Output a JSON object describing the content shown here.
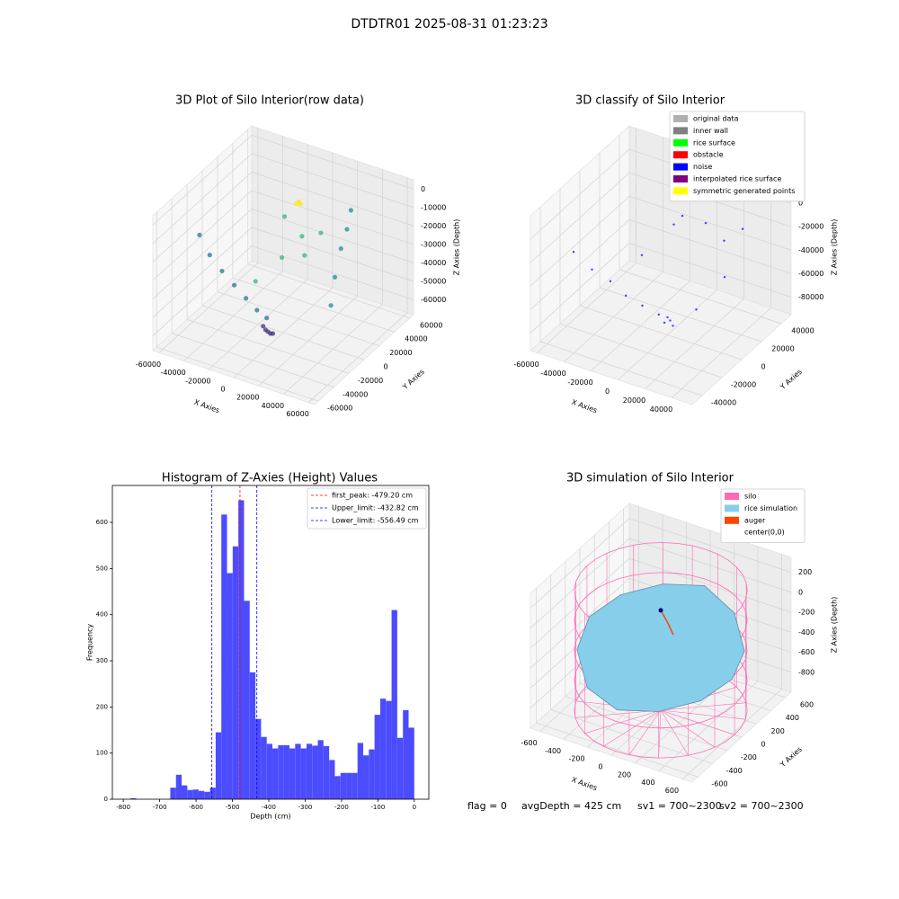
{
  "title": "DTDTR01 2025-08-31 01:23:23",
  "footer": [
    "flag = 0",
    "avgDepth = 425 cm",
    "sv1 = 700~2300",
    "sv2 = 700~2300"
  ],
  "chart_data": [
    {
      "type": "scatter3d",
      "title": "3D Plot of Silo Interior(row data)",
      "xlabel": "X Axies",
      "ylabel": "Y Axies",
      "zlabel": "Z Axies (Depth)",
      "xlim": [
        -65000,
        65000
      ],
      "ylim": [
        -65000,
        65000
      ],
      "zlim": [
        -68000,
        5000
      ],
      "xticks": [
        -60000,
        -40000,
        -20000,
        0,
        20000,
        40000,
        60000
      ],
      "yticks": [
        -60000,
        -40000,
        -20000,
        0,
        20000,
        40000,
        60000
      ],
      "zticks": [
        0,
        -10000,
        -20000,
        -30000,
        -40000,
        -50000,
        -60000
      ],
      "series": [
        {
          "color": "#2a788e",
          "x": [
            -55000,
            -48000,
            -40000,
            -32000,
            -25000,
            -18000,
            -12000
          ],
          "y": [
            -20000,
            -18000,
            -15000,
            -12000,
            -8000,
            -5000,
            -2000
          ],
          "z": [
            -20000,
            -30000,
            -38000,
            -45000,
            -52000,
            -58000,
            -62000
          ]
        },
        {
          "color": "#46327e",
          "x": [
            10000,
            5000,
            0,
            -5000,
            -10000
          ],
          "y": [
            -30000,
            -25000,
            -20000,
            -15000,
            -10000
          ],
          "z": [
            -55000,
            -58000,
            -60000,
            -62000,
            -63000
          ]
        },
        {
          "color": "#fde725",
          "x": [
            0,
            1000,
            -1000,
            500
          ],
          "y": [
            20000,
            21000,
            19000,
            20000
          ],
          "z": [
            -5000,
            -6000,
            -5500,
            -4500
          ]
        },
        {
          "color": "#35b779",
          "x": [
            -5000,
            2000,
            8000,
            12000,
            -10000,
            15000
          ],
          "y": [
            10000,
            -5000,
            15000,
            5000,
            -20000,
            25000
          ],
          "z": [
            -10000,
            -25000,
            -30000,
            -15000,
            -35000,
            -20000
          ]
        },
        {
          "color": "#21908d",
          "x": [
            20000,
            22000,
            25000,
            28000,
            30000
          ],
          "y": [
            30000,
            32000,
            35000,
            38000,
            40000
          ],
          "z": [
            -60000,
            -45000,
            -30000,
            -20000,
            -10000
          ]
        }
      ]
    },
    {
      "type": "scatter3d",
      "title": "3D classify of Silo Interior",
      "xlabel": "X Axies",
      "ylabel": "Y Axies",
      "zlabel": "Z Axies (Depth)",
      "xlim": [
        -65000,
        55000
      ],
      "ylim": [
        -50000,
        50000
      ],
      "zlim": [
        -95000,
        20000
      ],
      "xticks": [
        -60000,
        -40000,
        -20000,
        0,
        20000,
        40000
      ],
      "yticks": [
        -40000,
        -20000,
        0,
        20000,
        40000
      ],
      "zticks": [
        0,
        -20000,
        -40000,
        -60000,
        -80000
      ],
      "legend": "upper right",
      "series": [
        {
          "name": "original data",
          "color": "#b0b0b0",
          "x": [],
          "y": [],
          "z": []
        },
        {
          "name": "inner wall",
          "color": "#808080",
          "x": [],
          "y": [],
          "z": []
        },
        {
          "name": "rice surface",
          "color": "#00ff00",
          "x": [],
          "y": [],
          "z": []
        },
        {
          "name": "obstacle",
          "color": "#ff0000",
          "x": [],
          "y": [],
          "z": []
        },
        {
          "name": "noise",
          "color": "#0000ff",
          "x": [
            -55000,
            -45000,
            -35000,
            -25000,
            -15000,
            -5000,
            0,
            5000,
            15000,
            25000,
            35000,
            -10000,
            10000,
            20000,
            -30000,
            30000,
            0,
            2000
          ],
          "y": [
            -20000,
            -15000,
            -10000,
            -8000,
            -5000,
            -2000,
            0,
            -10000,
            -15000,
            -5000,
            10000,
            20000,
            25000,
            30000,
            15000,
            35000,
            15000,
            0
          ],
          "z": [
            -30000,
            -45000,
            -55000,
            -65000,
            -72000,
            -78000,
            -80000,
            -75000,
            -70000,
            -60000,
            -40000,
            -20000,
            -15000,
            -30000,
            -50000,
            -20000,
            -5000,
            -82000
          ]
        },
        {
          "name": "interpolated rice surface",
          "color": "#800080",
          "x": [],
          "y": [],
          "z": []
        },
        {
          "name": "symmetric generated points",
          "color": "#ffff00",
          "x": [],
          "y": [],
          "z": []
        }
      ]
    },
    {
      "type": "histogram",
      "title": "Histogram of Z-Axies (Height) Values",
      "xlabel": "Depth (cm)",
      "ylabel": "Frequency",
      "color": "#4c4cff",
      "xlim": [
        -830,
        40
      ],
      "ylim": [
        0,
        680
      ],
      "xticks": [
        -800,
        -700,
        -600,
        -500,
        -400,
        -300,
        -200,
        -100,
        0
      ],
      "yticks": [
        0,
        100,
        200,
        300,
        400,
        500,
        600
      ],
      "bins": [
        -780,
        -764.4,
        -748.8,
        -733.2,
        -717.6,
        -702,
        -686.4,
        -670.8,
        -655.2,
        -639.6,
        -624,
        -608.4,
        -592.8,
        -577.2,
        -561.6,
        -546,
        -530.4,
        -514.8,
        -499.2,
        -483.6,
        -468,
        -452.4,
        -436.8,
        -421.2,
        -405.6,
        -390,
        -374.4,
        -358.8,
        -343.2,
        -327.6,
        -312,
        -296.4,
        -280.8,
        -265.2,
        -249.6,
        -234,
        -218.4,
        -202.8,
        -187.2,
        -171.6,
        -156,
        -140.4,
        -124.8,
        -109.2,
        -93.6,
        -78,
        -62.4,
        -46.8,
        -31.2,
        -15.6,
        0
      ],
      "counts": [
        2,
        0,
        0,
        0,
        0,
        0,
        0,
        25,
        53,
        30,
        20,
        21,
        18,
        16,
        25,
        145,
        617,
        490,
        548,
        648,
        430,
        275,
        174,
        135,
        120,
        110,
        117,
        117,
        110,
        120,
        110,
        120,
        116,
        128,
        115,
        85,
        50,
        57,
        57,
        57,
        122,
        95,
        108,
        183,
        218,
        213,
        410,
        133,
        193,
        155
      ],
      "legend": "upper right",
      "lines": [
        {
          "label": "first_peak: -479.20 cm",
          "value": -479.2,
          "color": "#ff0000"
        },
        {
          "label": "Upper_limit: -432.82 cm",
          "value": -432.82,
          "color": "#0000ff"
        },
        {
          "label": "Lower_limit: -556.49 cm",
          "value": -556.49,
          "color": "#0000ff"
        }
      ]
    },
    {
      "type": "surface3d",
      "title": "3D simulation of Silo Interior",
      "xlabel": "X Axies",
      "ylabel": "Y Axies",
      "zlabel": "Z Axies (Depth)",
      "xlim": [
        -680,
        680
      ],
      "ylim": [
        -680,
        680
      ],
      "zlim": [
        -1000,
        350
      ],
      "xticks": [
        -600,
        -400,
        -200,
        0,
        200,
        400,
        600
      ],
      "yticks": [
        -600,
        -400,
        -200,
        0,
        200,
        400,
        600
      ],
      "zticks": [
        200,
        0,
        -200,
        -400,
        -600,
        -800
      ],
      "legend": "upper right",
      "silo": {
        "name": "silo",
        "color": "#ff69b4",
        "radius": 620,
        "z": [
          -1000,
          200
        ]
      },
      "series": [
        {
          "name": "rice simulation",
          "color": "#87ceeb",
          "x": [
            600,
            520,
            300,
            0,
            -300,
            -520,
            -600,
            -520,
            -300,
            0,
            300,
            520
          ],
          "y": [
            0,
            300,
            520,
            600,
            520,
            300,
            0,
            -300,
            -520,
            -600,
            -520,
            -300
          ],
          "z": [
            -450,
            -400,
            -250,
            -150,
            -200,
            -250,
            -300,
            -400,
            -550,
            -600,
            -550,
            -500
          ]
        },
        {
          "name": "auger",
          "color": "#ff4500",
          "x": [
            0,
            80,
            160
          ],
          "y": [
            0,
            -40,
            -90
          ],
          "z": [
            0,
            -60,
            -120
          ]
        },
        {
          "name": "center(0,0)",
          "color": "#ffffff",
          "x": [
            0
          ],
          "y": [
            0
          ],
          "z": [
            0
          ]
        }
      ]
    }
  ]
}
